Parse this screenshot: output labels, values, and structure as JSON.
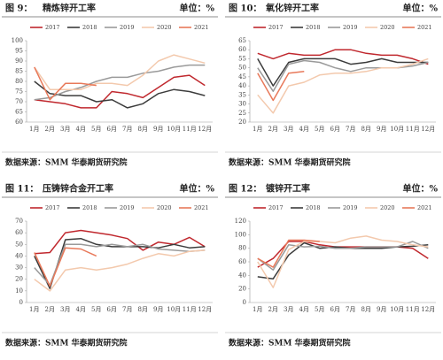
{
  "panels": [
    {
      "figure": "图 9：",
      "title": "精炼锌开工率",
      "unit": "单位：%",
      "source": "数据来源：SMM 华泰期货研究院"
    },
    {
      "figure": "图 10：",
      "title": "氧化锌开工率",
      "unit": "单位：%",
      "source": "数据来源：SMM 华泰期货研究院"
    },
    {
      "figure": "图 11：",
      "title": "压铸锌合金开工率",
      "unit": "单位：%",
      "source": "数据来源：SMM 华泰期货研究院"
    },
    {
      "figure": "图 12：",
      "title": "镀锌开工率",
      "unit": "单位：%",
      "source": "数据来源：SMM 华泰期货研究院"
    }
  ],
  "chart_data": [
    {
      "type": "line",
      "grid": false,
      "legend": "top",
      "categories": [
        "1月",
        "2月",
        "3月",
        "4月",
        "5月",
        "6月",
        "7月",
        "8月",
        "9月",
        "10月",
        "11月",
        "12月"
      ],
      "ylim": [
        60,
        100
      ],
      "yticks": [
        60,
        65,
        70,
        75,
        80,
        85,
        90,
        95,
        100
      ],
      "series": [
        {
          "name": "2017",
          "color": "#c0282e",
          "values": [
            71,
            70,
            69,
            67,
            67,
            75,
            74,
            72,
            77,
            82,
            83,
            78
          ]
        },
        {
          "name": "2018",
          "color": "#3c3c3c",
          "values": [
            80,
            74,
            73,
            73,
            70,
            71,
            67,
            69,
            74,
            76,
            75,
            73
          ]
        },
        {
          "name": "2019",
          "color": "#9a9a9a",
          "values": [
            71,
            72,
            75,
            77,
            80,
            82,
            82,
            84,
            85,
            87,
            88,
            88
          ]
        },
        {
          "name": "2020",
          "color": "#f3c9ad",
          "values": [
            87,
            76,
            76,
            76,
            79,
            79,
            78,
            83,
            90,
            93,
            91,
            89
          ]
        },
        {
          "name": "2021",
          "color": "#e8795a",
          "values": [
            87,
            71,
            79,
            79,
            78,
            null,
            null,
            null,
            null,
            null,
            null,
            null
          ]
        }
      ]
    },
    {
      "type": "line",
      "grid": false,
      "legend": "top",
      "categories": [
        "1月",
        "2月",
        "3月",
        "4月",
        "5月",
        "6月",
        "7月",
        "8月",
        "9月",
        "10月",
        "11月",
        "12月"
      ],
      "ylim": [
        20,
        65
      ],
      "yticks": [
        20,
        25,
        30,
        35,
        40,
        45,
        50,
        55,
        60,
        65
      ],
      "series": [
        {
          "name": "2017",
          "color": "#c0282e",
          "values": [
            58,
            55,
            58,
            57,
            57,
            60,
            60,
            58,
            57,
            57,
            55,
            52
          ]
        },
        {
          "name": "2018",
          "color": "#3c3c3c",
          "values": [
            55,
            40,
            53,
            55,
            55,
            55,
            52,
            53,
            55,
            53,
            53,
            53
          ]
        },
        {
          "name": "2019",
          "color": "#9a9a9a",
          "values": [
            50,
            37,
            52,
            54,
            53,
            50,
            48,
            50,
            50,
            50,
            51,
            53
          ]
        },
        {
          "name": "2020",
          "color": "#f3c9ad",
          "values": [
            35,
            25,
            40,
            42,
            46,
            47,
            47,
            48,
            50,
            50,
            52,
            55
          ]
        },
        {
          "name": "2021",
          "color": "#e8795a",
          "values": [
            47,
            32,
            47,
            48,
            null,
            null,
            null,
            null,
            null,
            null,
            null,
            null
          ]
        }
      ]
    },
    {
      "type": "line",
      "grid": false,
      "legend": "top",
      "categories": [
        "1月",
        "2月",
        "3月",
        "4月",
        "5月",
        "6月",
        "7月",
        "8月",
        "9月",
        "10月",
        "11月",
        "12月"
      ],
      "ylim": [
        0,
        70
      ],
      "yticks": [
        0,
        10,
        20,
        30,
        40,
        50,
        60,
        70
      ],
      "series": [
        {
          "name": "2017",
          "color": "#c0282e",
          "values": [
            42,
            43,
            60,
            62,
            60,
            58,
            55,
            45,
            52,
            50,
            56,
            48
          ]
        },
        {
          "name": "2018",
          "color": "#3c3c3c",
          "values": [
            40,
            12,
            54,
            55,
            50,
            48,
            48,
            48,
            47,
            50,
            47,
            48
          ]
        },
        {
          "name": "2019",
          "color": "#9a9a9a",
          "values": [
            30,
            15,
            50,
            50,
            48,
            50,
            48,
            50,
            46,
            45,
            44,
            45
          ]
        },
        {
          "name": "2020",
          "color": "#f3c9ad",
          "values": [
            20,
            10,
            28,
            30,
            28,
            30,
            33,
            38,
            42,
            40,
            44,
            45
          ]
        },
        {
          "name": "2021",
          "color": "#e8795a",
          "values": [
            43,
            14,
            47,
            46,
            40,
            null,
            null,
            null,
            null,
            null,
            null,
            null
          ]
        }
      ]
    },
    {
      "type": "line",
      "grid": false,
      "legend": "top",
      "categories": [
        "1月",
        "2月",
        "3月",
        "4月",
        "5月",
        "6月",
        "7月",
        "8月",
        "9月",
        "10月",
        "11月",
        "12月"
      ],
      "ylim": [
        0,
        120
      ],
      "yticks": [
        0,
        20,
        40,
        60,
        80,
        100,
        120
      ],
      "series": [
        {
          "name": "2017",
          "color": "#c0282e",
          "values": [
            52,
            65,
            90,
            90,
            85,
            82,
            82,
            82,
            82,
            82,
            80,
            65
          ]
        },
        {
          "name": "2018",
          "color": "#3c3c3c",
          "values": [
            38,
            35,
            70,
            88,
            80,
            82,
            80,
            80,
            80,
            82,
            83,
            85
          ]
        },
        {
          "name": "2019",
          "color": "#9a9a9a",
          "values": [
            65,
            48,
            85,
            82,
            83,
            80,
            80,
            82,
            82,
            82,
            90,
            80
          ]
        },
        {
          "name": "2020",
          "color": "#f3c9ad",
          "values": [
            60,
            22,
            78,
            90,
            90,
            88,
            95,
            98,
            92,
            90,
            85,
            82
          ]
        },
        {
          "name": "2021",
          "color": "#e8795a",
          "values": [
            65,
            52,
            92,
            92,
            90,
            null,
            null,
            null,
            null,
            null,
            null,
            null
          ]
        }
      ]
    }
  ]
}
